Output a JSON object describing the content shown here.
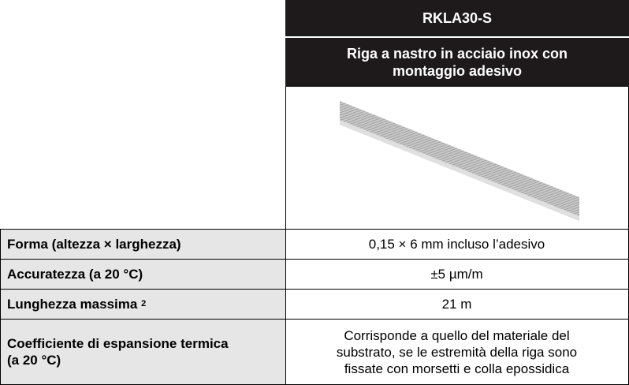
{
  "header": {
    "title": "RKLA30-S",
    "subtitle": "Riga a nastro in acciaio inox con montaggio adesivo"
  },
  "table": {
    "rows": [
      {
        "label": "Forma (altezza × larghezza)",
        "value": "0,15 × 6 mm incluso l’adesivo"
      },
      {
        "label": "Accuratezza (a 20 °C)",
        "value": "±5 µm/m"
      },
      {
        "label": "Lunghezza massima",
        "note": "2",
        "value": "21 m"
      },
      {
        "label": "Coefficiente di espansione termica (a 20 °C)",
        "value": "Corrisponde a quello del materiale del substrato, se le estremità della riga sono fissate con morsetti e colla epossidica"
      }
    ]
  }
}
